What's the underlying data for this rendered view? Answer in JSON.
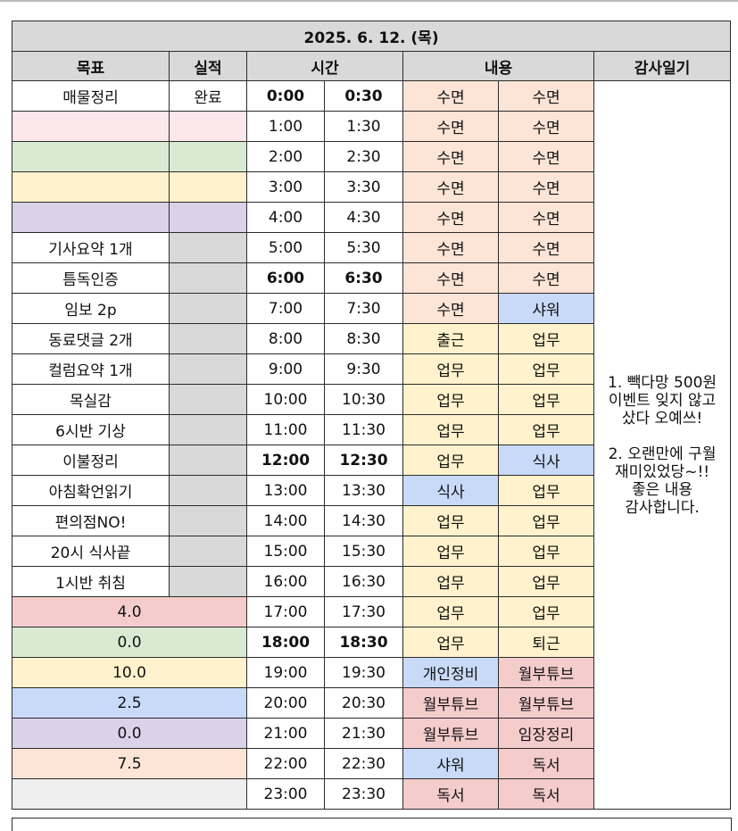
{
  "date_title": "2025. 6. 12. (목)",
  "headers": {
    "goal": "목표",
    "result": "실적",
    "time": "시간",
    "content": "내용",
    "gratitude": "감사일기"
  },
  "goals": [
    {
      "goal": "매물정리",
      "result": "완료"
    },
    {
      "goal": "",
      "result": ""
    },
    {
      "goal": "",
      "result": ""
    },
    {
      "goal": "",
      "result": ""
    },
    {
      "goal": "",
      "result": ""
    },
    {
      "goal": "기사요약 1개",
      "result": ""
    },
    {
      "goal": "틈독인증",
      "result": ""
    },
    {
      "goal": "임보 2p",
      "result": ""
    },
    {
      "goal": "동료댓글 2개",
      "result": ""
    },
    {
      "goal": "컬럼요약 1개",
      "result": ""
    },
    {
      "goal": "목실감",
      "result": ""
    },
    {
      "goal": "6시반 기상",
      "result": ""
    },
    {
      "goal": "이불정리",
      "result": ""
    },
    {
      "goal": "아침확언읽기",
      "result": ""
    },
    {
      "goal": "편의점NO!",
      "result": ""
    },
    {
      "goal": "20시 식사끝",
      "result": ""
    },
    {
      "goal": "1시반 취침",
      "result": ""
    }
  ],
  "scores": [
    "4.0",
    "0.0",
    "10.0",
    "2.5",
    "0.0",
    "7.5",
    ""
  ],
  "schedule": [
    {
      "t1": "0:00",
      "t2": "0:30",
      "a": "수면",
      "b": "수면"
    },
    {
      "t1": "1:00",
      "t2": "1:30",
      "a": "수면",
      "b": "수면"
    },
    {
      "t1": "2:00",
      "t2": "2:30",
      "a": "수면",
      "b": "수면"
    },
    {
      "t1": "3:00",
      "t2": "3:30",
      "a": "수면",
      "b": "수면"
    },
    {
      "t1": "4:00",
      "t2": "4:30",
      "a": "수면",
      "b": "수면"
    },
    {
      "t1": "5:00",
      "t2": "5:30",
      "a": "수면",
      "b": "수면"
    },
    {
      "t1": "6:00",
      "t2": "6:30",
      "a": "수면",
      "b": "수면"
    },
    {
      "t1": "7:00",
      "t2": "7:30",
      "a": "수면",
      "b": "샤워"
    },
    {
      "t1": "8:00",
      "t2": "8:30",
      "a": "출근",
      "b": "업무"
    },
    {
      "t1": "9:00",
      "t2": "9:30",
      "a": "업무",
      "b": "업무"
    },
    {
      "t1": "10:00",
      "t2": "10:30",
      "a": "업무",
      "b": "업무"
    },
    {
      "t1": "11:00",
      "t2": "11:30",
      "a": "업무",
      "b": "업무"
    },
    {
      "t1": "12:00",
      "t2": "12:30",
      "a": "업무",
      "b": "식사"
    },
    {
      "t1": "13:00",
      "t2": "13:30",
      "a": "식사",
      "b": "업무"
    },
    {
      "t1": "14:00",
      "t2": "14:30",
      "a": "업무",
      "b": "업무"
    },
    {
      "t1": "15:00",
      "t2": "15:30",
      "a": "업무",
      "b": "업무"
    },
    {
      "t1": "16:00",
      "t2": "16:30",
      "a": "업무",
      "b": "업무"
    },
    {
      "t1": "17:00",
      "t2": "17:30",
      "a": "업무",
      "b": "업무"
    },
    {
      "t1": "18:00",
      "t2": "18:30",
      "a": "업무",
      "b": "퇴근"
    },
    {
      "t1": "19:00",
      "t2": "19:30",
      "a": "개인정비",
      "b": "월부튜브"
    },
    {
      "t1": "20:00",
      "t2": "20:30",
      "a": "월부튜브",
      "b": "월부튜브"
    },
    {
      "t1": "21:00",
      "t2": "21:30",
      "a": "월부튜브",
      "b": "임장정리"
    },
    {
      "t1": "22:00",
      "t2": "22:30",
      "a": "샤워",
      "b": "독서"
    },
    {
      "t1": "23:00",
      "t2": "23:30",
      "a": "독서",
      "b": "독서"
    }
  ],
  "gratitude": {
    "item1_line1": "1. 빽다망 500원",
    "item1_line2": "이벤트 잊지 않고",
    "item1_line3": "샀다 오예쓰!",
    "item2_line1": "2. 오랜만에 구월",
    "item2_line2": "재미있었당~!!",
    "item2_line3": "좋은 내용",
    "item2_line4": "감사합니다."
  },
  "colors": {
    "sleep": "#fce4d6",
    "work": "#fff2cc",
    "meal_shower": "#c9daf8",
    "evening": "#f4cccc",
    "header": "#d9d9d9"
  }
}
